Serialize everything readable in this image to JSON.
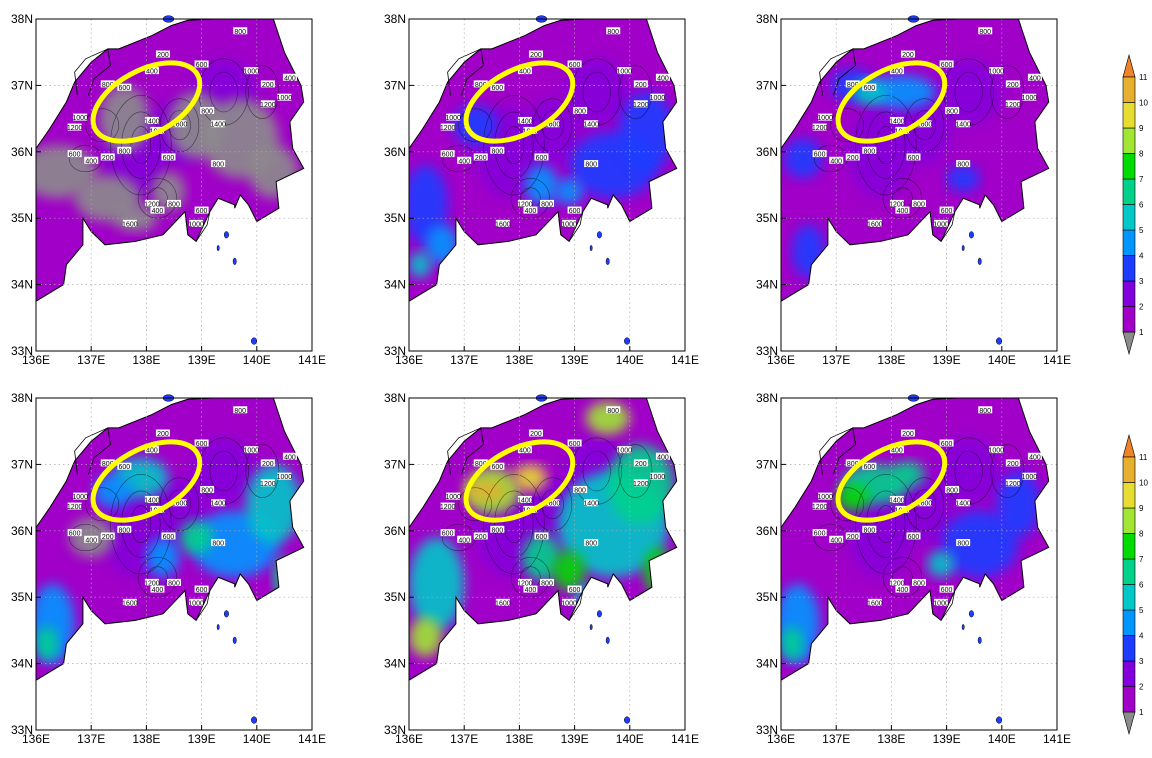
{
  "figure": {
    "lon_ticks": [
      "136E",
      "137E",
      "138E",
      "139E",
      "140E",
      "141E"
    ],
    "lat_ticks": [
      "38N",
      "37N",
      "36N",
      "35N",
      "34N",
      "33N"
    ],
    "extent": {
      "lon": [
        136,
        141
      ],
      "lat": [
        33,
        38
      ]
    },
    "colors": {
      "undef": "#8c8c8c",
      "c1": "#a000c8",
      "c2": "#8200dc",
      "c3": "#1e3cff",
      "c4": "#0096ff",
      "c5": "#00c8c8",
      "c6": "#00d28c",
      "c7": "#00dc00",
      "c8": "#a0e632",
      "c9": "#e6dc32",
      "c10": "#e6af2d",
      "c11": "#f08228",
      "circle": "#ffff00",
      "contour": "#000000"
    },
    "highlight_ellipse": {
      "center_lon": 138.0,
      "center_lat": 36.75,
      "semi_major_deg": 1.05,
      "semi_minor_deg": 0.48,
      "rotation_deg": -28
    },
    "contour_labels": [
      "200",
      "400",
      "600",
      "800",
      "1000",
      "1200",
      "1400",
      "1600",
      "1000",
      "800",
      "600",
      "400",
      "200",
      "600",
      "800",
      "1200",
      "400",
      "600",
      "800",
      "1000"
    ],
    "panels": [
      {
        "id": "p1",
        "row": 0,
        "col": 0,
        "regime": "undef-heavy"
      },
      {
        "id": "p2",
        "row": 0,
        "col": 1,
        "regime": "low"
      },
      {
        "id": "p3",
        "row": 0,
        "col": 2,
        "regime": "low-coastal"
      },
      {
        "id": "p4",
        "row": 1,
        "col": 0,
        "regime": "mid-undef"
      },
      {
        "id": "p5",
        "row": 1,
        "col": 1,
        "regime": "high"
      },
      {
        "id": "p6",
        "row": 1,
        "col": 2,
        "regime": "mid"
      }
    ],
    "colorbars": [
      {
        "id": "cb1",
        "row": 0,
        "labels": [
          "1",
          "2",
          "3",
          "4",
          "5",
          "6",
          "7",
          "8",
          "9",
          "10",
          "11"
        ]
      },
      {
        "id": "cb2",
        "row": 1,
        "labels": [
          "1",
          "2",
          "3",
          "4",
          "5",
          "6",
          "7",
          "8",
          "9",
          "10",
          "11"
        ]
      }
    ]
  }
}
